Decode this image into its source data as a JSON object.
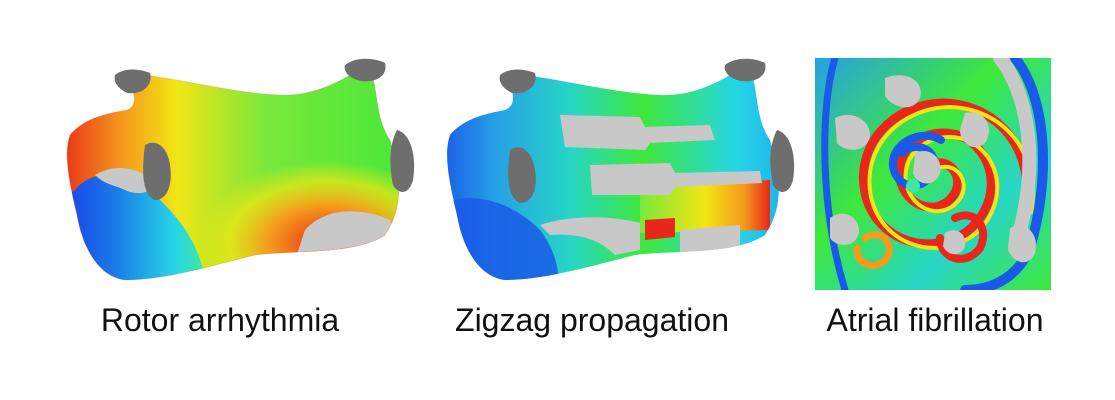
{
  "panels": [
    {
      "caption": "Rotor arrhythmia"
    },
    {
      "caption": "Zigzag propagation"
    },
    {
      "caption": "Atrial fibrillation"
    }
  ],
  "colors": {
    "tissue_gray": "#c8c8c8",
    "valve_gray": "#6e6e6e",
    "red": "#e8261a",
    "orange": "#f59a1c",
    "yellow": "#f2e614",
    "green": "#3ee83a",
    "cyan": "#26d6e6",
    "blue": "#1a5ae8"
  }
}
